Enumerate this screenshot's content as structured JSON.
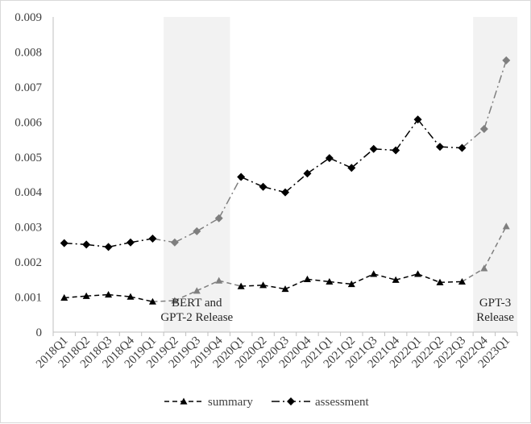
{
  "chart_data": {
    "type": "line",
    "title": "",
    "xlabel": "",
    "ylabel": "",
    "categories": [
      "2018Q1",
      "2018Q2",
      "2018Q3",
      "2018Q4",
      "2019Q1",
      "2019Q2",
      "2019Q3",
      "2019Q4",
      "2020Q1",
      "2020Q2",
      "2020Q3",
      "2020Q4",
      "2021Q1",
      "2021Q2",
      "2021Q3",
      "2021Q4",
      "2022Q1",
      "2022Q2",
      "2022Q3",
      "2022Q4",
      "2023Q1"
    ],
    "ylim": [
      0,
      0.009
    ],
    "yticks": [
      "0",
      "0.001",
      "0.002",
      "0.003",
      "0.004",
      "0.005",
      "0.006",
      "0.007",
      "0.008",
      "0.009"
    ],
    "grid": false,
    "legend_position": "bottom",
    "series": [
      {
        "name": "summary",
        "line_style": "dashed",
        "marker": "triangle",
        "values": [
          0.00098,
          0.00103,
          0.00107,
          0.00101,
          0.00087,
          0.0009,
          0.00118,
          0.00147,
          0.00131,
          0.00134,
          0.00123,
          0.00151,
          0.00144,
          0.00137,
          0.00166,
          0.00149,
          0.00166,
          0.00142,
          0.00144,
          0.00182,
          0.00302
        ]
      },
      {
        "name": "assessment",
        "line_style": "dash-dot",
        "marker": "diamond",
        "values": [
          0.00254,
          0.0025,
          0.00243,
          0.00256,
          0.00267,
          0.00256,
          0.00288,
          0.00325,
          0.00443,
          0.00415,
          0.00399,
          0.00453,
          0.00497,
          0.00469,
          0.00523,
          0.00519,
          0.00607,
          0.00529,
          0.00526,
          0.0058,
          0.00776
        ]
      }
    ],
    "shaded_regions": [
      {
        "from": "2019Q2",
        "to": "2019Q4",
        "label_lines": [
          "BERT and",
          "GPT-2 Release"
        ]
      },
      {
        "from": "2022Q4",
        "to": "2023Q1",
        "label_lines": [
          "GPT-3",
          "Release"
        ]
      }
    ],
    "colors": {
      "shade": "#f2f2f2",
      "axis": "#bfbfbf",
      "line_faded": "#7f7f7f",
      "line_dark": "#000000",
      "text": "#404040"
    }
  }
}
